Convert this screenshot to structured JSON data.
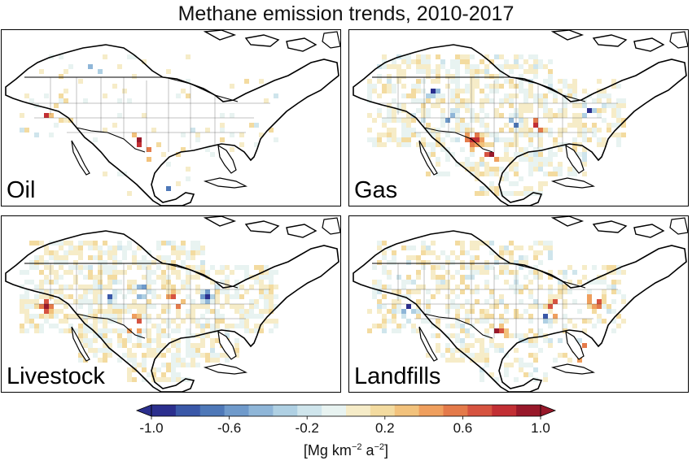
{
  "figure": {
    "title": "Methane emission trends, 2010-2017"
  },
  "panels": [
    {
      "id": "oil",
      "label": "Oil"
    },
    {
      "id": "gas",
      "label": "Gas"
    },
    {
      "id": "livestock",
      "label": "Livestock"
    },
    {
      "id": "landfills",
      "label": "Landfills"
    }
  ],
  "colorbar": {
    "range": [
      -1.0,
      1.0
    ],
    "tick_labels": [
      "-1.0",
      "-0.6",
      "-0.2",
      "0.2",
      "0.6",
      "1.0"
    ],
    "unit_prefix": "[Mg km",
    "unit_exp1": "−2",
    "unit_mid": " a",
    "unit_exp2": "−2",
    "unit_suffix": "]",
    "colors": [
      "#2b2f8e",
      "#3a58a8",
      "#4e78b8",
      "#6f9acb",
      "#8fb6d8",
      "#afd0e3",
      "#cfe5ec",
      "#e8f3f1",
      "#f6ecc8",
      "#f3dba0",
      "#f2c27c",
      "#ef9f5e",
      "#e47a4a",
      "#d65340",
      "#c22f34",
      "#98182a"
    ]
  },
  "colors": {
    "land": "#ffffff",
    "coast": "#000000",
    "border": "#333333"
  }
}
